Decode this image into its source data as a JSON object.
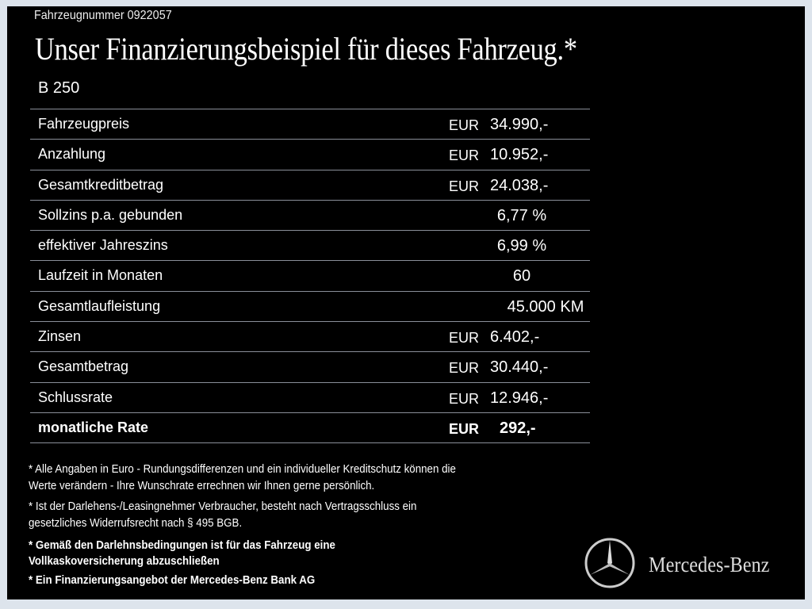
{
  "vehicle_number": "Fahrzeugnummer  0922057",
  "title": "Unser Finanzierungsbeispiel für dieses Fahrzeug.*",
  "model": "B 250",
  "rows": [
    {
      "label": "Fahrzeugpreis",
      "currency": "EUR",
      "value": "34.990,-"
    },
    {
      "label": "Anzahlung",
      "currency": "EUR",
      "value": "10.952,-"
    },
    {
      "label": "Gesamtkreditbetrag",
      "currency": "EUR",
      "value": "24.038,-"
    },
    {
      "label": "Sollzins p.a. gebunden",
      "value": "6,77 %"
    },
    {
      "label": "effektiver Jahreszins",
      "value": "6,99 %"
    },
    {
      "label": "Laufzeit in Monaten",
      "value": "60"
    },
    {
      "label": "Gesamtlaufleistung",
      "value": "45.000 KM"
    },
    {
      "label": "Zinsen",
      "currency": "EUR",
      "value": "6.402,-"
    },
    {
      "label": "Gesamtbetrag",
      "currency": "EUR",
      "value": "30.440,-"
    },
    {
      "label": "Schlussrate",
      "currency": "EUR",
      "value": "12.946,-"
    },
    {
      "label": "monatliche Rate",
      "currency": "EUR",
      "value": "292,-"
    }
  ],
  "notes": [
    "* Alle Angaben in Euro - Rundungsdifferenzen und ein individueller Kreditschutz können die",
    "   Werte verändern - Ihre Wunschrate errechnen wir Ihnen gerne persönlich.",
    "* Ist der Darlehens-/Leasingnehmer Verbraucher, besteht nach Vertragsschluss ein",
    "   gesetzliches  Widerrufsrecht nach § 495 BGB.",
    "* Gemäß den Darlehnsbedingungen ist für das Fahrzeug eine",
    "   Vollkaskoversicherung abzuschließen",
    "* Ein Finanzierungsangebot der Mercedes-Benz Bank AG"
  ],
  "brand": "Mercedes-Benz",
  "logo_icon": "mercedes-star-icon",
  "colors": {
    "background": "#000000",
    "frame": "#dde4ec",
    "divider": "#8a8f99"
  }
}
